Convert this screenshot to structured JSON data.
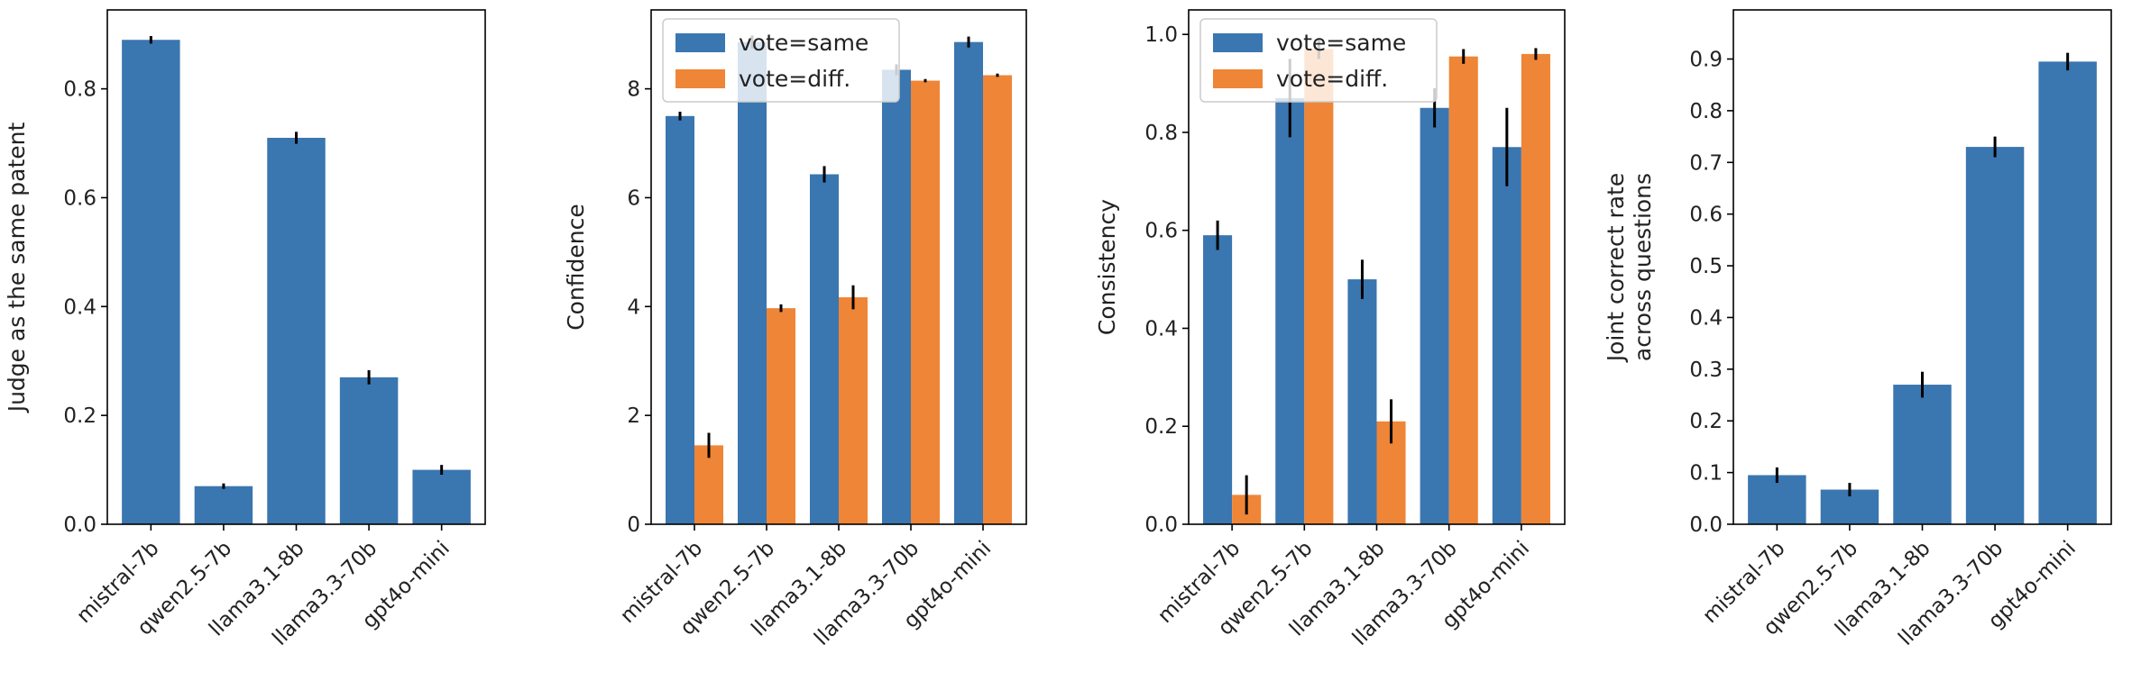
{
  "colors": {
    "same": "#3a76b0",
    "diff": "#ef8536",
    "errorbar": "#000000",
    "axis": "#000000"
  },
  "chart_data": [
    {
      "type": "bar",
      "title": "",
      "xlabel": "",
      "ylabel": "Judge as the same patent",
      "categories": [
        "mistral-7b",
        "qwen2.5-7b",
        "llama3.1-8b",
        "llama3.3-70b",
        "gpt4o-mini"
      ],
      "ylim": [
        0,
        0.945
      ],
      "yticks": [
        0.0,
        0.2,
        0.4,
        0.6,
        0.8
      ],
      "ytick_labels": [
        "0.0",
        "0.2",
        "0.4",
        "0.6",
        "0.8"
      ],
      "series": [
        {
          "name": "",
          "color": "#3a76b0",
          "values": [
            0.89,
            0.07,
            0.71,
            0.27,
            0.1
          ],
          "errors": [
            0.007,
            0.005,
            0.011,
            0.013,
            0.009
          ]
        }
      ],
      "legend": null
    },
    {
      "type": "bar",
      "title": "",
      "xlabel": "",
      "ylabel": "Confidence",
      "categories": [
        "mistral-7b",
        "qwen2.5-7b",
        "llama3.1-8b",
        "llama3.3-70b",
        "gpt4o-mini"
      ],
      "ylim": [
        0,
        9.45
      ],
      "yticks": [
        0,
        2,
        4,
        6,
        8
      ],
      "ytick_labels": [
        "0",
        "2",
        "4",
        "6",
        "8"
      ],
      "series": [
        {
          "name": "vote=same",
          "color": "#3a76b0",
          "values": [
            7.5,
            8.86,
            6.43,
            8.35,
            8.86
          ],
          "errors": [
            0.08,
            0.12,
            0.15,
            0.1,
            0.1
          ]
        },
        {
          "name": "vote=diff.",
          "color": "#ef8536",
          "values": [
            1.45,
            3.97,
            4.17,
            8.15,
            8.25
          ],
          "errors": [
            0.23,
            0.07,
            0.22,
            0.03,
            0.03
          ]
        }
      ],
      "legend": "top-left"
    },
    {
      "type": "bar",
      "title": "",
      "xlabel": "",
      "ylabel": "Consistency",
      "categories": [
        "mistral-7b",
        "qwen2.5-7b",
        "llama3.1-8b",
        "llama3.3-70b",
        "gpt4o-mini"
      ],
      "ylim": [
        0,
        1.05
      ],
      "yticks": [
        0.0,
        0.2,
        0.4,
        0.6,
        0.8,
        1.0
      ],
      "ytick_labels": [
        "0.0",
        "0.2",
        "0.4",
        "0.6",
        "0.8",
        "1.0"
      ],
      "series": [
        {
          "name": "vote=same",
          "color": "#3a76b0",
          "values": [
            0.59,
            0.87,
            0.5,
            0.85,
            0.77
          ],
          "errors": [
            0.03,
            0.08,
            0.04,
            0.04,
            0.08
          ]
        },
        {
          "name": "vote=diff.",
          "color": "#ef8536",
          "values": [
            0.06,
            0.97,
            0.21,
            0.955,
            0.96
          ],
          "errors": [
            0.04,
            0.02,
            0.045,
            0.015,
            0.012
          ]
        }
      ],
      "legend": "top-left"
    },
    {
      "type": "bar",
      "title": "",
      "xlabel": "",
      "ylabel": "Joint correct rate\nacross questions",
      "categories": [
        "mistral-7b",
        "qwen2.5-7b",
        "llama3.1-8b",
        "llama3.3-70b",
        "gpt4o-mini"
      ],
      "ylim": [
        0,
        0.995
      ],
      "yticks": [
        0.0,
        0.1,
        0.2,
        0.3,
        0.4,
        0.5,
        0.6,
        0.7,
        0.8,
        0.9
      ],
      "ytick_labels": [
        "0.0",
        "0.1",
        "0.2",
        "0.3",
        "0.4",
        "0.5",
        "0.6",
        "0.7",
        "0.8",
        "0.9"
      ],
      "series": [
        {
          "name": "",
          "color": "#3a76b0",
          "values": [
            0.095,
            0.067,
            0.27,
            0.73,
            0.895
          ],
          "errors": [
            0.015,
            0.013,
            0.025,
            0.02,
            0.017
          ]
        }
      ],
      "legend": null
    }
  ]
}
